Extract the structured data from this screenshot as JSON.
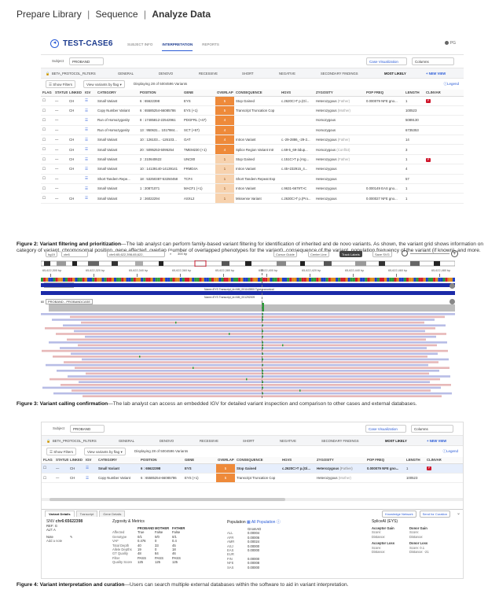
{
  "breadcrumb": {
    "item1": "Prepare Library",
    "sep": "|",
    "item2": "Sequence",
    "item3": "Analyze Data"
  },
  "app": {
    "case_title": "TEST-CASE6",
    "tabs": [
      "SUBJECT INFO",
      "INTERPRETATION",
      "REPORTS"
    ],
    "active_tab": "INTERPRETATION",
    "user": "PG",
    "subject_label": "Subject",
    "subject_value": "PROBAND",
    "case_viz": "Case Visualization",
    "columns": "Columns",
    "filters": [
      "BETA_PROTOCOL_FILTERS",
      "GENERAL",
      "DENOVO",
      "RECESSIVE",
      "SHORT",
      "NEGATIVE",
      "SECONDARY FINDINGS",
      "MOST LIKELY",
      "+ NEW VIEW"
    ],
    "show_filters": "Show Filters",
    "view_by_flag": "View variants by flag",
    "displaying": "Displaying 28 of 5004596 Variants",
    "legend": "Legend"
  },
  "grid": {
    "headers": [
      "FLAG",
      "STATUS",
      "LINKED",
      "IGV",
      "CATEGORY",
      "POSITION",
      "GENE",
      "OVERLAP",
      "CONSEQUENCE",
      "HGVS",
      "ZYGOSITY",
      "POP FREQ",
      "LENGTH",
      "CLINVAR"
    ],
    "rows": [
      {
        "flag": "☐",
        "status": "—",
        "linked": "CH",
        "igv": "☰",
        "category": "Small Variant",
        "position": "6 : 65622398",
        "gene": "EYS",
        "overlap": "5",
        "consequence": "Stop Gained",
        "hgvs": "c.2620C>T p.(Gl...",
        "zygosity": "Heterozygous",
        "zyg_note": "(Father)",
        "popfreq": "0.000079 NFE gno...",
        "length": "1",
        "clinvar": "P"
      },
      {
        "flag": "☐",
        "status": "—",
        "linked": "CH",
        "igv": "☰",
        "category": "Copy Number Variant",
        "position": "6 : 65585254-66085786",
        "gene": "EYS (+1)",
        "overlap": "5",
        "consequence": "Transcript Truncation  Cop",
        "hgvs": "",
        "zygosity": "Heterozygous",
        "zyg_note": "(Mother)",
        "popfreq": "",
        "length": "100523",
        "clinvar": ""
      },
      {
        "flag": "☐",
        "status": "—",
        "linked": "",
        "igv": "☰",
        "category": "Run of Homozygosity",
        "position": "8 : 17485812-22542961",
        "gene": "PDGFRL (+47)",
        "overlap": "4",
        "consequence": "",
        "hgvs": "",
        "zygosity": "Homozygous",
        "zyg_note": "",
        "popfreq": "",
        "length": "5089130",
        "clinvar": ""
      },
      {
        "flag": "☐",
        "status": "—",
        "linked": "",
        "igv": "☰",
        "category": "Run of Homozygosity",
        "position": "13 : 950631... 1017984...",
        "gene": "SCT (+57)",
        "overlap": "4",
        "consequence": "",
        "hgvs": "",
        "zygosity": "Homozygous",
        "zyg_note": "",
        "popfreq": "",
        "length": "6735353",
        "clinvar": ""
      },
      {
        "flag": "☐",
        "status": "—",
        "linked": "CH",
        "igv": "☰",
        "category": "Small Variant",
        "position": "10 : 126103... -126103...",
        "gene": "OAT",
        "overlap": "4",
        "consequence": "Intron Variant",
        "hgvs": "c.-29-2886_-29-2...",
        "zygosity": "Heterozygous",
        "zyg_note": "(Father)",
        "popfreq": "",
        "length": "14",
        "clinvar": ""
      },
      {
        "flag": "☐",
        "status": "—",
        "linked": "CH",
        "igv": "☰",
        "category": "Small Variant",
        "position": "20 : 5095253-5095254",
        "gene": "TMEM230 (+1)",
        "overlap": "4",
        "consequence": "Splice Region Variant  Intr",
        "hgvs": "c.69-5_69-3dup...",
        "zygosity": "Homozygous",
        "zyg_note": "(Conflict)",
        "popfreq": "",
        "length": "3",
        "clinvar": ""
      },
      {
        "flag": "☐",
        "status": "—",
        "linked": "CH",
        "igv": "☰",
        "category": "Small Variant",
        "position": "2 : 210640622",
        "gene": "UNC80",
        "overlap": "1",
        "consequence": "Stop Gained",
        "hgvs": "c.151C>T p.(Arg...",
        "zygosity": "Heterozygous",
        "zyg_note": "(Father)",
        "popfreq": "",
        "length": "1",
        "clinvar": "P"
      },
      {
        "flag": "☐",
        "status": "—",
        "linked": "CH",
        "igv": "☰",
        "category": "Small Variant",
        "position": "10 : 14139140-14139141",
        "gene": "FRMD4A",
        "overlap": "1",
        "consequence": "Intron Variant",
        "hgvs": "c.45+232915_4...",
        "zygosity": "Heterozygous",
        "zyg_note": "",
        "popfreq": "",
        "length": "4",
        "clinvar": ""
      },
      {
        "flag": "☐",
        "status": "—",
        "linked": "",
        "igv": "☰",
        "category": "Short Tandem Repe...",
        "position": "18 : 53250387-53250458",
        "gene": "TCF4",
        "overlap": "1",
        "consequence": "Short Tandem Repeat Exp",
        "hgvs": "",
        "zygosity": "Heterozygous",
        "zyg_note": "",
        "popfreq": "",
        "length": "57",
        "clinvar": ""
      },
      {
        "flag": "☐",
        "status": "—",
        "linked": "",
        "igv": "☰",
        "category": "Small Variant",
        "position": "1 : 20871071",
        "gene": "MACF1 (+1)",
        "overlap": "1",
        "consequence": "Intron Variant",
        "hgvs": "c.9631-6679T>C",
        "zygosity": "Heterozygous",
        "zyg_note": "",
        "popfreq": "0.000149 EAS gno...",
        "length": "1",
        "clinvar": ""
      },
      {
        "flag": "☐",
        "status": "—",
        "linked": "CH",
        "igv": "☰",
        "category": "Small Variant",
        "position": "2 : 26022294",
        "gene": "ASXL2",
        "overlap": "1",
        "consequence": "Missense Variant",
        "hgvs": "c.2630C>T p.(Pro...",
        "zygosity": "Heterozygous",
        "zyg_note": "",
        "popfreq": "0.000027 NFE gno...",
        "length": "1",
        "clinvar": ""
      }
    ]
  },
  "captions": {
    "fig2_label": "Figure 2: Variant filtering and prioritization",
    "fig2_text": "—The lab analyst can perform family-based variant filtering for identification of inherited and de novo variants. As shown, the variant grid shows information on category of variant, chromosomal position, gene affected, overlap (number of overlapped phenotypes for the variant), consequence of the variant, population frequency of the variant (if known), and more.",
    "fig3_label": "Figure 3: Variant calling confirmation",
    "fig3_text": "—The lab analyst can access an embedded IGV for detailed variant inspection and comparison to other cases and external databases.",
    "fig4_label": "Figure 4: Variant interpretation and curation",
    "fig4_text": "—Users can search multiple external databases within the software to aid in variant interpretation."
  },
  "igv": {
    "genome": "hg19",
    "chrom": "chr6",
    "locus": "chr6:65,622,398-65,622,",
    "span": "300 bp",
    "buttons": [
      "Cursor Guide",
      "Center Line",
      "Track Labels",
      "Save SVG"
    ],
    "ruler": [
      "65,622,300 bp",
      "65,622,320 bp",
      "65,622,340 bp",
      "65,622,360 bp",
      "65,622,380 bp",
      "65,622,400 bp",
      "65,622,420 bp",
      "65,622,440 bp",
      "65,622,460 bp",
      "65,622,480 bp"
    ],
    "gene_track": "REFSEQ GENES",
    "transcripts": [
      "Name=EYS Transcript_id=NM_001142800 Type=canonical",
      "Name=EYS Transcript_id=NM_001292009"
    ],
    "proband_track": "PROBAND - PROBANDCASE",
    "coverage_max": "60"
  },
  "panel4": {
    "subject_label": "Subject",
    "subject_value": "PROBAND",
    "case_viz": "Case Visualization",
    "columns": "Columns",
    "displaying": "Displaying 28 of 5004596 Variants",
    "rows": [
      {
        "flag": "☐",
        "status": "—",
        "linked": "CH",
        "igv": "☰",
        "category": "Small Variant",
        "position": "6 : 65622398",
        "gene": "EYS",
        "overlap": "5",
        "consequence": "Stop Gained",
        "hgvs": "c.2620C>T p.(Gl...",
        "zygosity": "Heterozygous",
        "zyg_note": "(Father)",
        "popfreq": "0.000079 NFE gno...",
        "length": "1",
        "clinvar": "P"
      },
      {
        "flag": "☐",
        "status": "—",
        "linked": "CH",
        "igv": "☰",
        "category": "Copy Number Variant",
        "position": "6 : 65585254-66085786",
        "gene": "EYS (+1)",
        "overlap": "5",
        "consequence": "Transcript Truncation  Cop",
        "hgvs": "",
        "zygosity": "Heterozygous",
        "zyg_note": "(Mother)",
        "popfreq": "",
        "length": "100523",
        "clinvar": ""
      }
    ],
    "detail_tabs": [
      "Variant Details",
      "Transcript",
      "Gene Details"
    ],
    "knowledge": "Knowledge Network",
    "send_curation": "Send for Curation",
    "snv_label": "SNV",
    "snv_pos": "chr6:65622398",
    "ref": "REF: G",
    "alt": "ALT: A",
    "note_label": "Note",
    "add_note": "Add a note",
    "zyg_title": "Zygosity & Metrics",
    "zyg_cols": [
      "",
      "PROBAND",
      "MOTHER",
      "FATHER"
    ],
    "zyg_rows": [
      [
        "Affected",
        "True",
        "False",
        "False"
      ],
      [
        "Genotype",
        "0/1",
        "0/0",
        "0/1"
      ],
      [
        "VAF",
        "0.476",
        "0",
        "0.4"
      ],
      [
        "Total Depth",
        "40",
        "33",
        "45"
      ],
      [
        "Allele Depths",
        "19",
        "0",
        "18"
      ],
      [
        "GT Quality",
        "48",
        "84",
        "46"
      ],
      [
        "Filter",
        "PASS",
        "PASS",
        "PASS"
      ],
      [
        "Quality Score",
        "125",
        "125",
        "125"
      ]
    ],
    "pop_title": "Population",
    "pop_link": "All Population",
    "pop_col": "GnomAD",
    "pop_rows": [
      [
        "ALL",
        "0.00004"
      ],
      [
        "AFR",
        "0.00006"
      ],
      [
        "AMR",
        "0.00024"
      ],
      [
        "ASJ",
        "0.00000"
      ],
      [
        "EAS",
        "0.00000"
      ],
      [
        "EUR",
        ""
      ],
      [
        "FIN",
        "0.00000"
      ],
      [
        "NFE",
        "0.00008"
      ],
      [
        "SAS",
        "0.00000"
      ]
    ],
    "splice_title": "SpliceAI (EYS)",
    "splice": [
      [
        "Acceptor Gain",
        "",
        "Donor Gain",
        ""
      ],
      [
        "Score:",
        "",
        "Score:",
        ""
      ],
      [
        "Distance:",
        "",
        "Distance:",
        ""
      ],
      [
        "Acceptor Loss",
        "",
        "Donor Loss",
        ""
      ],
      [
        "Score:",
        "",
        "Score: 0.1",
        ""
      ],
      [
        "Distance:",
        "",
        "Distance: -21",
        ""
      ]
    ]
  },
  "colors": {
    "accent": "#2a5bd7",
    "overlap": "#f0a35a",
    "overlap_high": "#ee8a3a",
    "clinvar": "#d0172c"
  }
}
